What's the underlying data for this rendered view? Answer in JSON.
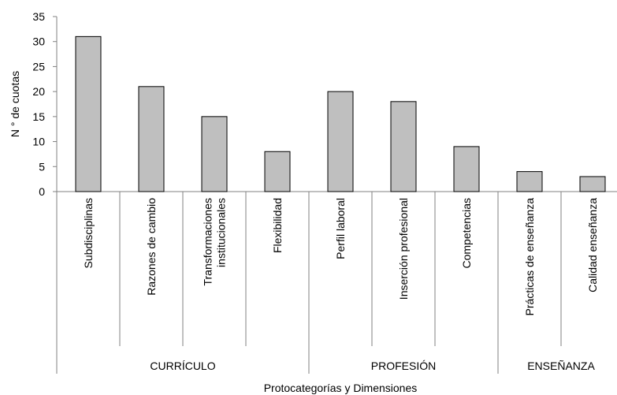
{
  "chart_data": {
    "type": "bar",
    "categories": [
      [
        "Subdisciplinas"
      ],
      [
        "Razones de cambio"
      ],
      [
        "Transformaciones",
        "institucionales"
      ],
      [
        "Flexibilidad"
      ],
      [
        "Perfil laboral"
      ],
      [
        "Inserción profesional"
      ],
      [
        "Competencias"
      ],
      [
        "Prácticas de enseñanza"
      ],
      [
        "Calidad enseñanza"
      ]
    ],
    "values": [
      31,
      21,
      15,
      8,
      20,
      18,
      9,
      4,
      3
    ],
    "groups": [
      {
        "label": "CURRÍCULO",
        "start": 0,
        "end": 3
      },
      {
        "label": "PROFESIÓN",
        "start": 4,
        "end": 6
      },
      {
        "label": "ENSEÑANZA",
        "start": 7,
        "end": 8
      }
    ],
    "xlabel": "Protocategorías y Dimensiones",
    "ylabel": "N ° de cuotas",
    "ylim": [
      0,
      35
    ],
    "yticks": [
      0,
      5,
      10,
      15,
      20,
      25,
      30,
      35
    ],
    "bar_color": "#bfbfbf",
    "bar_edge_color": "#000000",
    "grid": false,
    "legend": "none"
  }
}
